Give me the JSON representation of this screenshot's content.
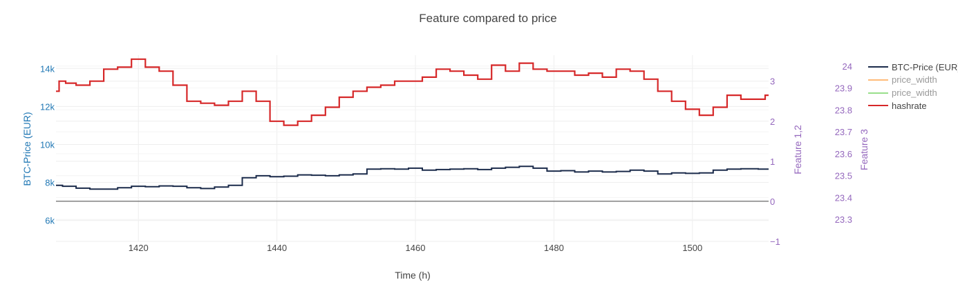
{
  "chart_data": {
    "type": "line",
    "title": "Feature compared to price",
    "xlabel": "Time (h)",
    "ylabel": "BTC-Price (EUR)",
    "y2label": "Feature 1,2",
    "y3label": "Feature 3",
    "xlim": [
      1408.1,
      1511.0
    ],
    "ylim": [
      4900,
      14700
    ],
    "y2lim": [
      -1,
      3.65
    ],
    "y3lim": [
      23.2,
      24.05
    ],
    "x_ticks": [
      1420,
      1440,
      1460,
      1480,
      1500
    ],
    "y_ticks": [
      {
        "v": 6000,
        "label": "6k"
      },
      {
        "v": 8000,
        "label": "8k"
      },
      {
        "v": 10000,
        "label": "10k"
      },
      {
        "v": 12000,
        "label": "12k"
      },
      {
        "v": 14000,
        "label": "14k"
      }
    ],
    "y2_ticks": [
      {
        "v": -1,
        "label": "−1"
      },
      {
        "v": 0,
        "label": "0"
      },
      {
        "v": 1,
        "label": "1"
      },
      {
        "v": 2,
        "label": "2"
      },
      {
        "v": 3,
        "label": "3"
      }
    ],
    "y3_ticks": [
      {
        "v": 23.3,
        "label": "23.3"
      },
      {
        "v": 23.4,
        "label": "23.4"
      },
      {
        "v": 23.5,
        "label": "23.5"
      },
      {
        "v": 23.6,
        "label": "23.6"
      },
      {
        "v": 23.7,
        "label": "23.7"
      },
      {
        "v": 23.8,
        "label": "23.8"
      },
      {
        "v": 23.9,
        "label": "23.9"
      },
      {
        "v": 24,
        "label": "24"
      }
    ],
    "grid": true,
    "legend_position": "top-right",
    "series": [
      {
        "name": "BTC-Price (EUR)",
        "axis": "y",
        "color": "#1a2a4a",
        "x": [
          1408.1,
          1410,
          1412,
          1414,
          1416,
          1418,
          1420,
          1422,
          1424,
          1426,
          1428,
          1430,
          1432,
          1434,
          1436,
          1438,
          1440,
          1442,
          1444,
          1446,
          1448,
          1450,
          1452,
          1454,
          1456,
          1458,
          1460,
          1462,
          1464,
          1466,
          1468,
          1470,
          1472,
          1474,
          1476,
          1478,
          1480,
          1482,
          1484,
          1486,
          1488,
          1490,
          1492,
          1494,
          1496,
          1498,
          1500,
          1502,
          1504,
          1506,
          1508,
          1511
        ],
        "y": [
          7850,
          7800,
          7700,
          7650,
          7650,
          7720,
          7800,
          7780,
          7820,
          7800,
          7720,
          7680,
          7760,
          7850,
          8250,
          8350,
          8300,
          8330,
          8400,
          8380,
          8350,
          8400,
          8450,
          8700,
          8720,
          8700,
          8750,
          8650,
          8680,
          8700,
          8720,
          8680,
          8750,
          8800,
          8850,
          8750,
          8600,
          8620,
          8550,
          8600,
          8550,
          8580,
          8650,
          8600,
          8450,
          8500,
          8480,
          8500,
          8650,
          8700,
          8720,
          8700
        ]
      },
      {
        "name": "price_width",
        "axis": "y2",
        "color": "#ffbb78",
        "x": [],
        "y": []
      },
      {
        "name": "price_width",
        "axis": "y2",
        "color": "#98df8a",
        "x": [],
        "y": []
      },
      {
        "name": "hashrate",
        "axis": "y2",
        "color": "#d62728",
        "x": [
          1408.1,
          1409,
          1410,
          1412,
          1414,
          1416,
          1418,
          1420,
          1422,
          1424,
          1426,
          1428,
          1430,
          1432,
          1434,
          1436,
          1438,
          1440,
          1442,
          1444,
          1446,
          1448,
          1450,
          1452,
          1454,
          1456,
          1458,
          1460,
          1462,
          1464,
          1466,
          1468,
          1470,
          1472,
          1474,
          1476,
          1478,
          1480,
          1482,
          1484,
          1486,
          1488,
          1490,
          1492,
          1494,
          1496,
          1498,
          1500,
          1502,
          1504,
          1506,
          1508,
          1510,
          1511
        ],
        "y": [
          2.75,
          3.0,
          2.95,
          2.9,
          3.0,
          3.3,
          3.35,
          3.55,
          3.35,
          3.25,
          2.9,
          2.5,
          2.45,
          2.4,
          2.5,
          2.75,
          2.5,
          2.0,
          1.9,
          2.0,
          2.15,
          2.35,
          2.6,
          2.75,
          2.85,
          2.9,
          3.0,
          3.0,
          3.1,
          3.3,
          3.25,
          3.15,
          3.05,
          3.4,
          3.25,
          3.45,
          3.3,
          3.25,
          3.25,
          3.15,
          3.2,
          3.1,
          3.3,
          3.25,
          3.05,
          2.75,
          2.5,
          2.3,
          2.15,
          2.35,
          2.65,
          2.55,
          2.55,
          2.65
        ]
      }
    ]
  }
}
